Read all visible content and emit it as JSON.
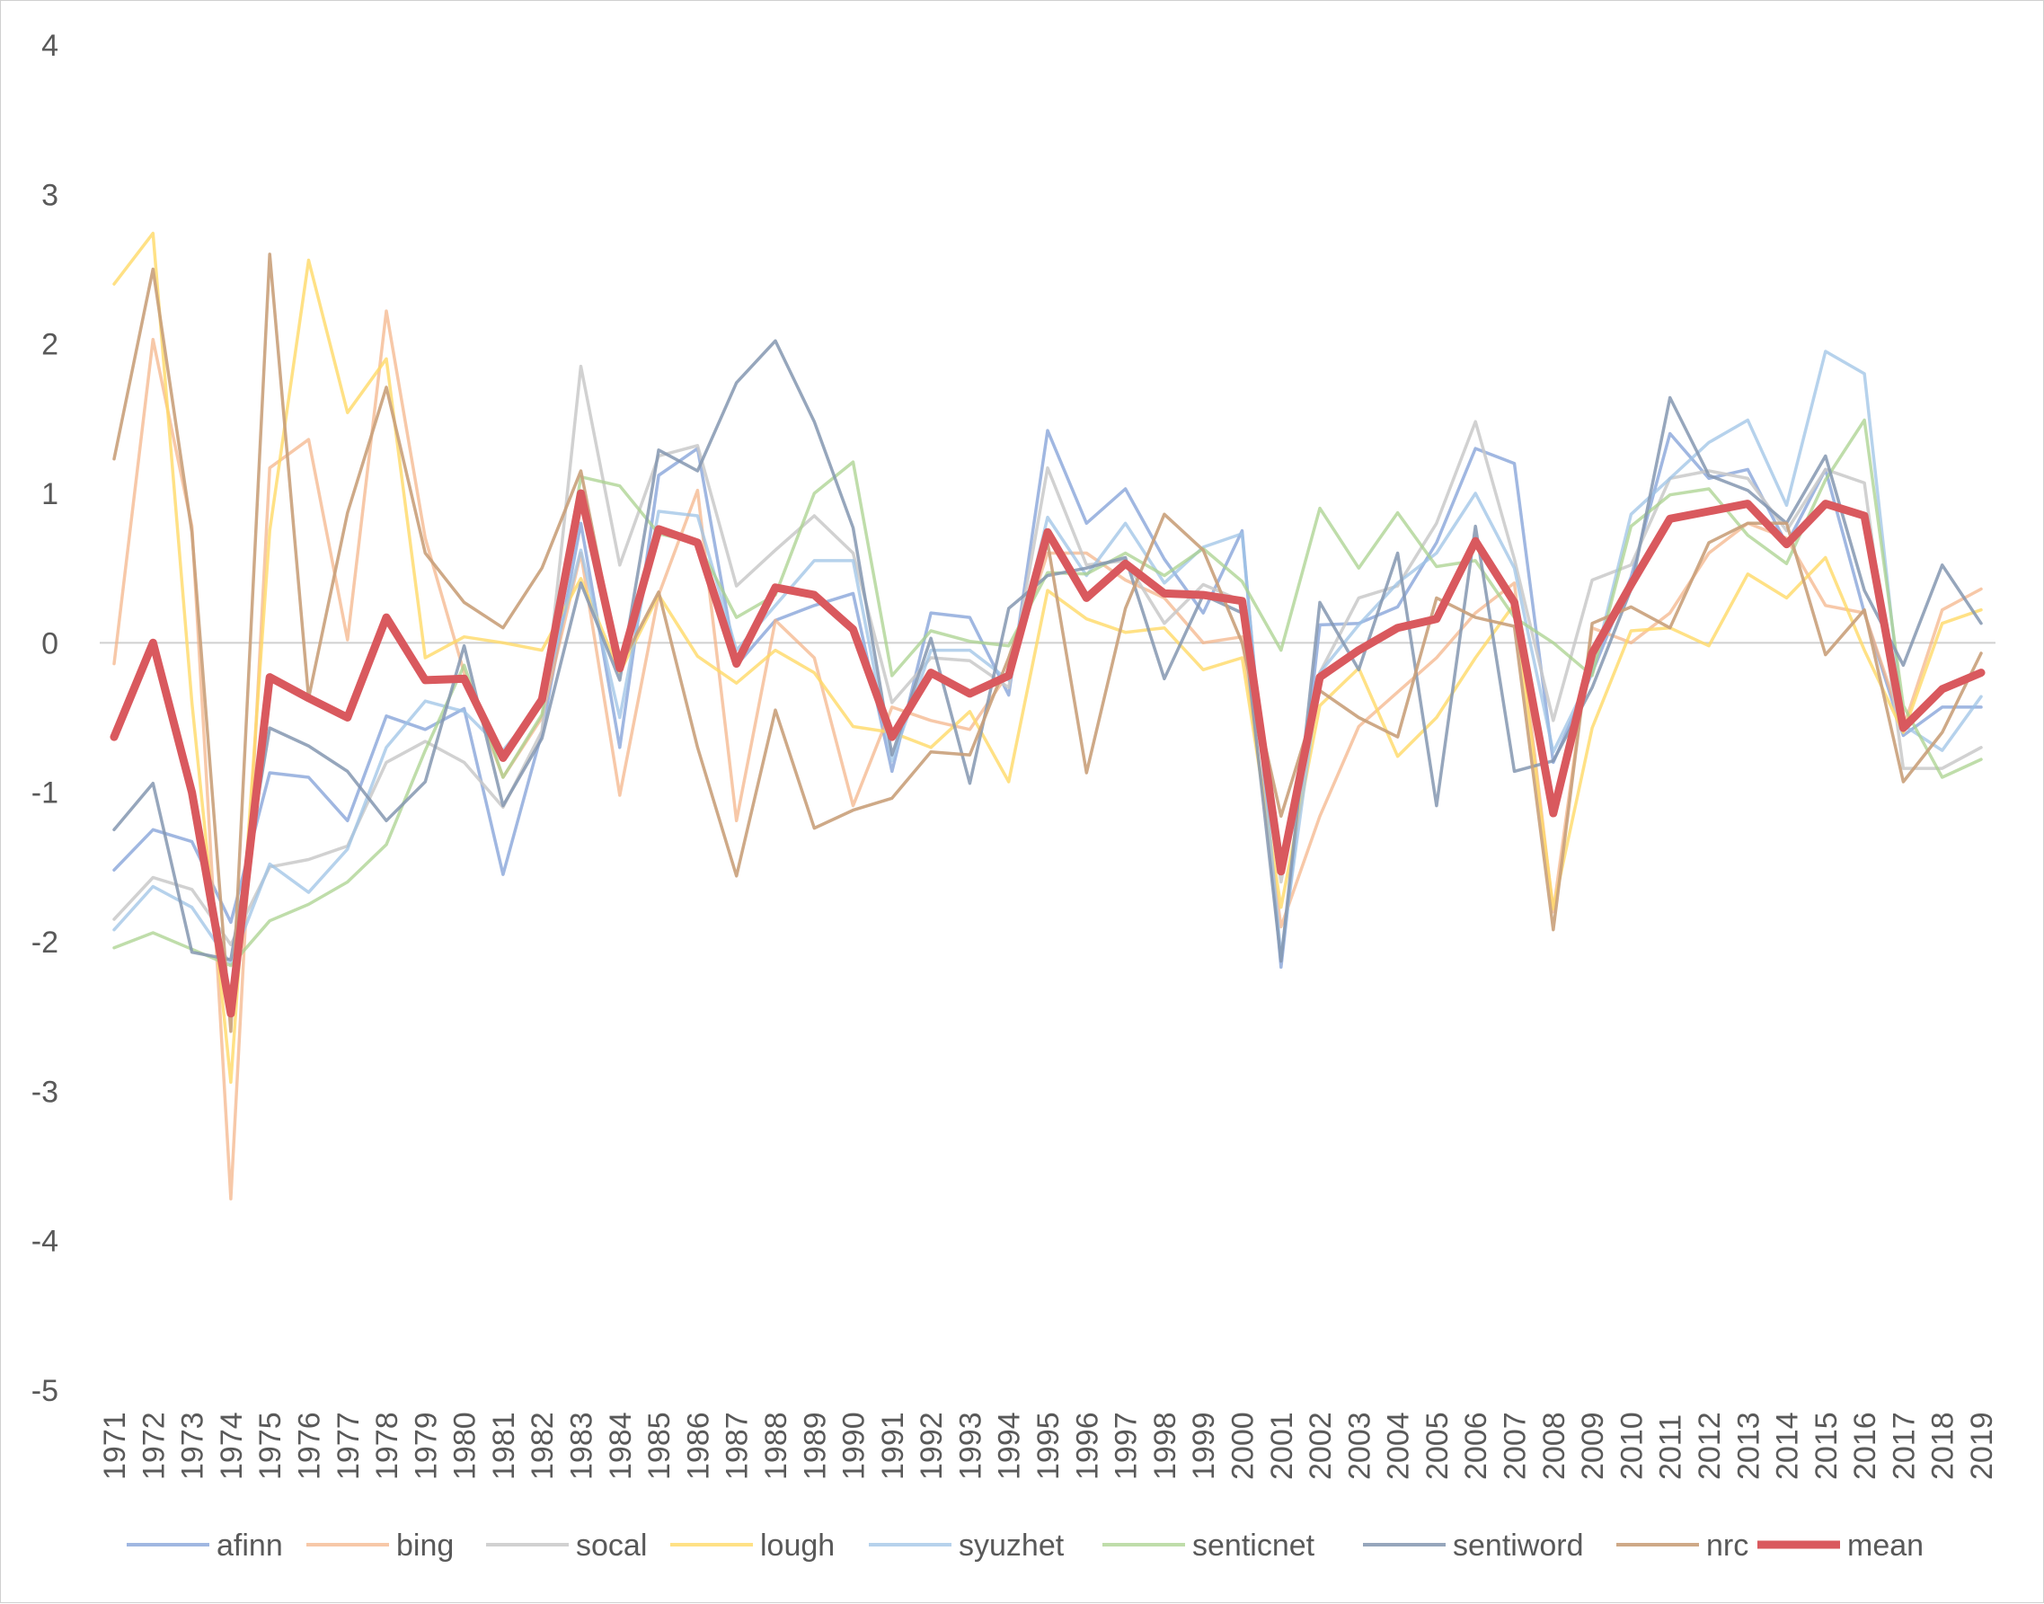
{
  "chart_data": {
    "type": "line",
    "title": "",
    "xlabel": "",
    "ylabel": "",
    "ylim": [
      -5,
      4
    ],
    "y_ticks": [
      "4",
      "3",
      "2",
      "1",
      "0",
      "-1",
      "-2",
      "-3",
      "-4",
      "-5"
    ],
    "x": [
      "1971",
      "1972",
      "1973",
      "1974",
      "1975",
      "1976",
      "1977",
      "1978",
      "1979",
      "1980",
      "1981",
      "1982",
      "1983",
      "1984",
      "1985",
      "1986",
      "1987",
      "1988",
      "1989",
      "1990",
      "1991",
      "1992",
      "1993",
      "1994",
      "1995",
      "1996",
      "1997",
      "1998",
      "1999",
      "2000",
      "2001",
      "2002",
      "2003",
      "2004",
      "2005",
      "2006",
      "2007",
      "2008",
      "2009",
      "2010",
      "2011",
      "2012",
      "2013",
      "2014",
      "2015",
      "2016",
      "2017",
      "2018",
      "2019"
    ],
    "legend_position": "bottom",
    "series": [
      {
        "name": "afinn",
        "color": "#8faadc",
        "opacity": 0.85,
        "values": [
          -1.52,
          -1.25,
          -1.33,
          -1.87,
          -0.87,
          -0.9,
          -1.19,
          -0.49,
          -0.58,
          -0.44,
          -1.55,
          -0.6,
          0.8,
          -0.7,
          1.12,
          1.3,
          -0.15,
          0.15,
          0.25,
          0.33,
          -0.86,
          0.2,
          0.17,
          -0.35,
          1.42,
          0.8,
          1.03,
          0.56,
          0.2,
          0.75,
          -2.17,
          0.12,
          0.13,
          0.24,
          0.67,
          1.3,
          1.2,
          -0.8,
          -0.2,
          0.44,
          1.4,
          1.1,
          1.16,
          0.66,
          1.16,
          0.2,
          -0.62,
          -0.43,
          -0.43
        ]
      },
      {
        "name": "bing",
        "color": "#f4b183",
        "opacity": 0.7,
        "values": [
          -0.14,
          2.03,
          0.78,
          -3.72,
          1.17,
          1.36,
          0.02,
          2.22,
          0.7,
          -0.2,
          -0.9,
          -0.5,
          0.6,
          -1.02,
          0.32,
          1.02,
          -1.19,
          0.15,
          -0.1,
          -1.09,
          -0.43,
          -0.52,
          -0.58,
          -0.2,
          0.6,
          0.6,
          0.42,
          0.3,
          0.0,
          0.04,
          -1.9,
          -1.16,
          -0.56,
          -0.33,
          -0.1,
          0.2,
          0.4,
          -1.8,
          0.1,
          0.0,
          0.2,
          0.6,
          0.8,
          0.7,
          0.25,
          0.2,
          -0.57,
          0.22,
          0.36
        ]
      },
      {
        "name": "socal",
        "color": "#c9c9c9",
        "opacity": 0.85,
        "values": [
          -1.85,
          -1.57,
          -1.65,
          -2.02,
          -1.5,
          -1.45,
          -1.36,
          -0.8,
          -0.66,
          -0.8,
          -1.1,
          -0.59,
          1.85,
          0.52,
          1.25,
          1.32,
          0.38,
          0.62,
          0.85,
          0.6,
          -0.4,
          -0.1,
          -0.12,
          -0.3,
          1.17,
          0.52,
          0.55,
          0.13,
          0.39,
          0.28,
          -1.6,
          -0.2,
          0.3,
          0.38,
          0.8,
          1.48,
          0.56,
          -0.52,
          0.42,
          0.52,
          1.1,
          1.15,
          1.1,
          0.75,
          1.16,
          1.07,
          -0.84,
          -0.84,
          -0.7
        ]
      },
      {
        "name": "lough",
        "color": "#ffd966",
        "opacity": 0.8,
        "values": [
          2.4,
          2.74,
          -0.4,
          -2.94,
          0.75,
          2.56,
          1.54,
          1.9,
          -0.1,
          0.04,
          0.0,
          -0.05,
          0.43,
          -0.2,
          0.32,
          -0.09,
          -0.27,
          -0.05,
          -0.2,
          -0.56,
          -0.6,
          -0.7,
          -0.46,
          -0.93,
          0.35,
          0.16,
          0.07,
          0.1,
          -0.18,
          -0.1,
          -1.77,
          -0.42,
          -0.17,
          -0.76,
          -0.5,
          -0.1,
          0.26,
          -1.78,
          -0.57,
          0.08,
          0.1,
          -0.02,
          0.46,
          0.3,
          0.57,
          -0.05,
          -0.6,
          0.13,
          0.22
        ]
      },
      {
        "name": "syuzhet",
        "color": "#9dc3e6",
        "opacity": 0.75,
        "values": [
          -1.92,
          -1.63,
          -1.77,
          -2.15,
          -1.48,
          -1.67,
          -1.38,
          -0.7,
          -0.39,
          -0.46,
          -0.72,
          -0.4,
          0.62,
          -0.5,
          0.88,
          0.85,
          -0.05,
          0.25,
          0.55,
          0.55,
          -0.79,
          -0.05,
          -0.05,
          -0.25,
          0.84,
          0.45,
          0.8,
          0.4,
          0.64,
          0.73,
          -2.1,
          -0.2,
          0.12,
          0.4,
          0.6,
          1.0,
          0.5,
          -0.73,
          -0.2,
          0.86,
          1.1,
          1.34,
          1.49,
          0.92,
          1.95,
          1.8,
          -0.55,
          -0.72,
          -0.36
        ]
      },
      {
        "name": "senticnet",
        "color": "#a9d18e",
        "opacity": 0.75,
        "values": [
          -2.04,
          -1.94,
          -2.05,
          -2.16,
          -1.86,
          -1.75,
          -1.6,
          -1.35,
          -0.72,
          -0.15,
          -0.9,
          -0.48,
          1.11,
          1.05,
          0.73,
          0.67,
          0.17,
          0.32,
          1.0,
          1.21,
          -0.22,
          0.08,
          0.01,
          -0.02,
          0.47,
          0.46,
          0.6,
          0.45,
          0.63,
          0.41,
          -0.05,
          0.9,
          0.5,
          0.87,
          0.51,
          0.55,
          0.17,
          0.0,
          -0.22,
          0.78,
          0.99,
          1.03,
          0.72,
          0.53,
          1.09,
          1.49,
          -0.42,
          -0.9,
          -0.78
        ]
      },
      {
        "name": "sentiword",
        "color": "#8497b0",
        "opacity": 0.85,
        "values": [
          -1.25,
          -0.94,
          -2.07,
          -2.12,
          -0.57,
          -0.69,
          -0.86,
          -1.19,
          -0.93,
          -0.02,
          -1.09,
          -0.64,
          0.4,
          -0.25,
          1.29,
          1.15,
          1.74,
          2.02,
          1.48,
          0.77,
          -0.75,
          0.03,
          -0.94,
          0.23,
          0.45,
          0.5,
          0.57,
          -0.24,
          0.32,
          0.2,
          -2.13,
          0.27,
          -0.18,
          0.6,
          -1.09,
          0.78,
          -0.86,
          -0.79,
          -0.3,
          0.36,
          1.64,
          1.12,
          1.02,
          0.8,
          1.25,
          0.35,
          -0.15,
          0.52,
          0.13
        ]
      },
      {
        "name": "nrc",
        "color": "#c9a07a",
        "opacity": 0.9,
        "values": [
          1.23,
          2.5,
          0.74,
          -2.6,
          2.6,
          -0.37,
          0.87,
          1.71,
          0.6,
          0.27,
          0.1,
          0.5,
          1.15,
          -0.16,
          0.34,
          -0.7,
          -1.56,
          -0.45,
          -1.24,
          -1.12,
          -1.04,
          -0.73,
          -0.75,
          -0.1,
          0.67,
          -0.87,
          0.23,
          0.86,
          0.62,
          0.0,
          -1.16,
          -0.32,
          -0.5,
          -0.63,
          0.3,
          0.17,
          0.11,
          -1.92,
          0.13,
          0.24,
          0.1,
          0.67,
          0.8,
          0.8,
          -0.08,
          0.22,
          -0.93,
          -0.6,
          -0.07
        ]
      },
      {
        "name": "mean",
        "color": "#d9595e",
        "opacity": 1.0,
        "bold": true,
        "values": [
          -0.63,
          0.0,
          -1.0,
          -2.48,
          -0.23,
          -0.37,
          -0.5,
          0.17,
          -0.25,
          -0.24,
          -0.77,
          -0.38,
          1.0,
          -0.17,
          0.76,
          0.67,
          -0.14,
          0.37,
          0.32,
          0.09,
          -0.63,
          -0.2,
          -0.34,
          -0.22,
          0.74,
          0.3,
          0.53,
          0.33,
          0.32,
          0.28,
          -1.53,
          -0.23,
          -0.05,
          0.1,
          0.16,
          0.68,
          0.27,
          -1.14,
          -0.07,
          0.39,
          0.83,
          0.88,
          0.93,
          0.66,
          0.93,
          0.85,
          -0.57,
          -0.31,
          -0.2
        ]
      }
    ]
  }
}
